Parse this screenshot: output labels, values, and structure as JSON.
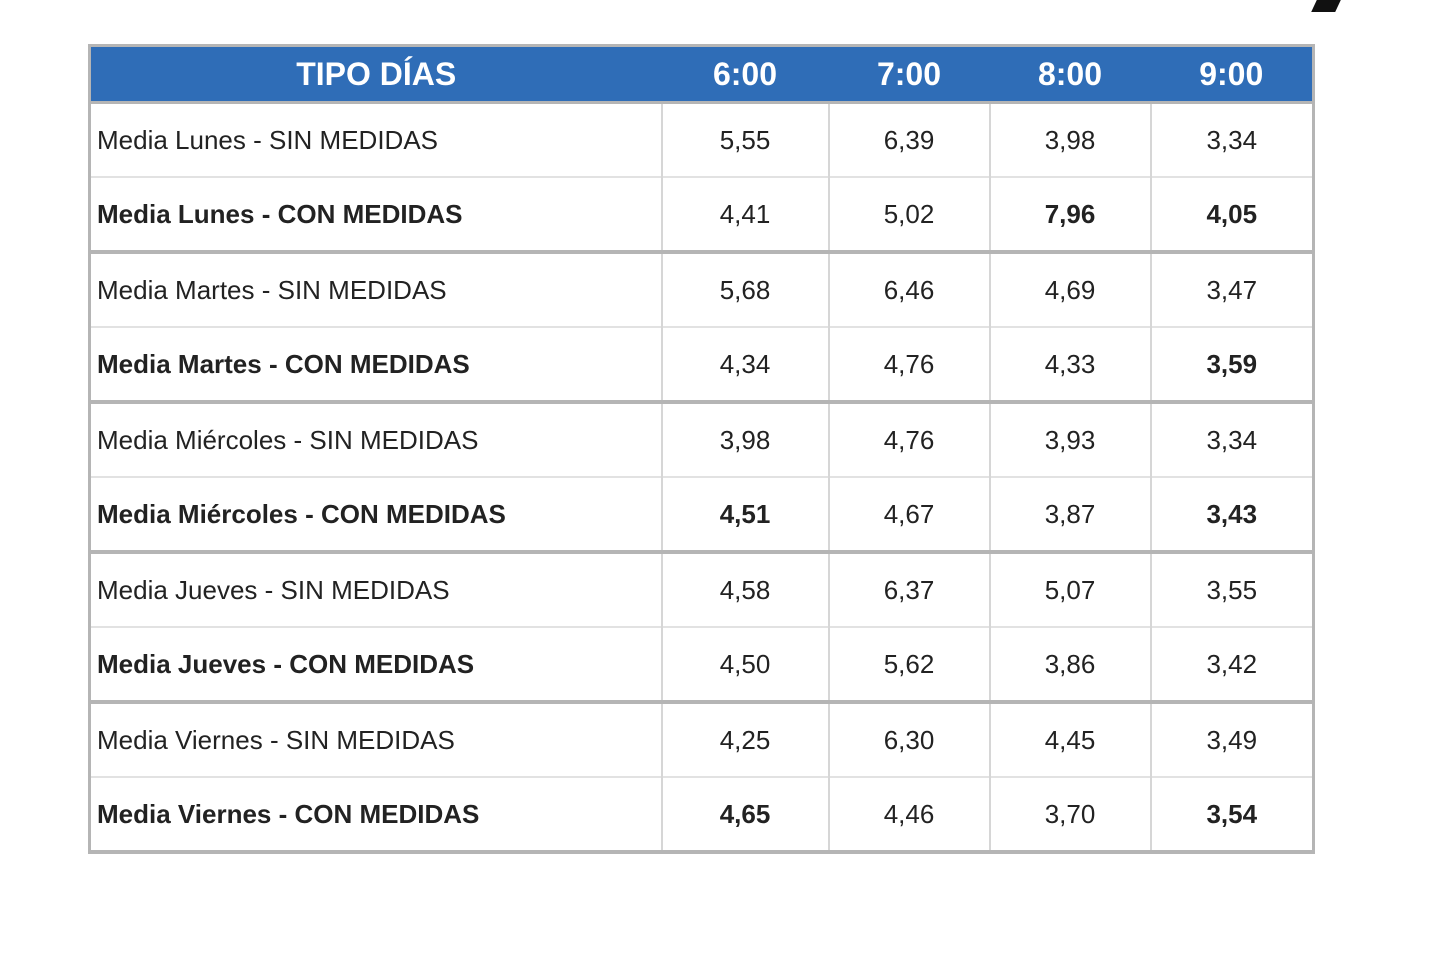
{
  "table": {
    "headers": [
      "TIPO DÍAS",
      "6:00",
      "7:00",
      "8:00",
      "9:00"
    ],
    "rows": [
      {
        "label": "Media Lunes - SIN MEDIDAS",
        "values": [
          "5,55",
          "6,39",
          "3,98",
          "3,34"
        ],
        "highlight": [
          false,
          false,
          false,
          false
        ]
      },
      {
        "label": "Media Lunes - CON MEDIDAS",
        "values": [
          "4,41",
          "5,02",
          "7,96",
          "4,05"
        ],
        "highlight": [
          false,
          false,
          true,
          true
        ]
      },
      {
        "label": "Media Martes - SIN MEDIDAS",
        "values": [
          "5,68",
          "6,46",
          "4,69",
          "3,47"
        ],
        "highlight": [
          false,
          false,
          false,
          false
        ]
      },
      {
        "label": "Media Martes - CON MEDIDAS",
        "values": [
          "4,34",
          "4,76",
          "4,33",
          "3,59"
        ],
        "highlight": [
          false,
          false,
          false,
          true
        ]
      },
      {
        "label": "Media Miércoles - SIN MEDIDAS",
        "values": [
          "3,98",
          "4,76",
          "3,93",
          "3,34"
        ],
        "highlight": [
          false,
          false,
          false,
          false
        ]
      },
      {
        "label": "Media Miércoles - CON MEDIDAS",
        "values": [
          "4,51",
          "4,67",
          "3,87",
          "3,43"
        ],
        "highlight": [
          true,
          false,
          false,
          true
        ]
      },
      {
        "label": "Media Jueves - SIN MEDIDAS",
        "values": [
          "4,58",
          "6,37",
          "5,07",
          "3,55"
        ],
        "highlight": [
          false,
          false,
          false,
          false
        ]
      },
      {
        "label": "Media Jueves - CON MEDIDAS",
        "values": [
          "4,50",
          "5,62",
          "3,86",
          "3,42"
        ],
        "highlight": [
          false,
          false,
          false,
          false
        ]
      },
      {
        "label": "Media Viernes - SIN MEDIDAS",
        "values": [
          "4,25",
          "6,30",
          "4,45",
          "3,49"
        ],
        "highlight": [
          false,
          false,
          false,
          false
        ]
      },
      {
        "label": "Media Viernes - CON MEDIDAS",
        "values": [
          "4,65",
          "4,46",
          "3,70",
          "3,54"
        ],
        "highlight": [
          true,
          false,
          false,
          true
        ]
      }
    ]
  },
  "colors": {
    "header_bg": "#2f6db7",
    "header_text": "#ffffff",
    "highlight_text": "#e23a32",
    "border": "#b5b5b5"
  }
}
